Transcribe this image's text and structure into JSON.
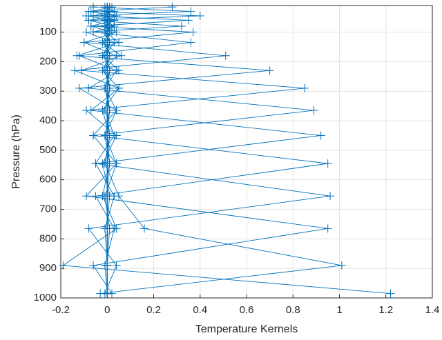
{
  "chart_data": {
    "type": "line",
    "xlabel": "Temperature Kernels",
    "ylabel": "Pressure (hPa)",
    "color": "#0072bd",
    "marker": "+",
    "xlim": [
      -0.2,
      1.4
    ],
    "xticks": [
      -0.2,
      0,
      0.2,
      0.4,
      0.6,
      0.8,
      1,
      1.2,
      1.4
    ],
    "ylim": [
      10,
      1000
    ],
    "yticks": [
      100,
      200,
      300,
      400,
      500,
      600,
      700,
      800,
      900,
      1000
    ],
    "y_reversed": true,
    "grid": true,
    "y": [
      15,
      30,
      45,
      60,
      80,
      100,
      135,
      180,
      230,
      290,
      365,
      450,
      545,
      655,
      765,
      890,
      985
    ],
    "series": [
      {
        "values": [
          0.28,
          -0.08,
          0.04,
          -0.01,
          0.01,
          0,
          0,
          0,
          0,
          0,
          0,
          0,
          0,
          0,
          0,
          0,
          0
        ]
      },
      {
        "values": [
          -0.06,
          0.36,
          -0.09,
          0.03,
          -0.01,
          0.01,
          0,
          0,
          0,
          0,
          0,
          0,
          0,
          0,
          0,
          0,
          0
        ]
      },
      {
        "values": [
          0.02,
          -0.07,
          0.4,
          -0.08,
          0.03,
          -0.01,
          0.01,
          0,
          0,
          0,
          0,
          0,
          0,
          0,
          0,
          0,
          0
        ]
      },
      {
        "values": [
          -0.01,
          0.03,
          -0.06,
          0.35,
          -0.07,
          0.02,
          -0.01,
          0,
          0.01,
          0,
          0,
          0,
          0,
          0,
          0,
          0,
          0
        ]
      },
      {
        "values": [
          0.01,
          -0.01,
          0.03,
          -0.08,
          0.32,
          -0.09,
          0.03,
          -0.01,
          0,
          0,
          0,
          0,
          0,
          0,
          0,
          0,
          0
        ]
      },
      {
        "values": [
          0,
          0.01,
          -0.01,
          0.03,
          -0.07,
          0.37,
          -0.1,
          0.04,
          -0.01,
          0.01,
          0,
          0,
          0,
          0,
          0,
          0,
          0
        ]
      },
      {
        "values": [
          0,
          0,
          0.01,
          -0.01,
          0.03,
          -0.06,
          0.36,
          -0.12,
          0.04,
          -0.01,
          0.01,
          0,
          0,
          0,
          0,
          0,
          0
        ]
      },
      {
        "values": [
          0,
          0,
          0,
          0.01,
          -0.01,
          0.04,
          -0.1,
          0.51,
          -0.14,
          0.05,
          -0.02,
          0.01,
          0,
          0,
          0,
          0,
          0
        ]
      },
      {
        "values": [
          0,
          0,
          0,
          0,
          0.01,
          -0.01,
          0.05,
          -0.13,
          0.7,
          -0.12,
          0.04,
          -0.01,
          0.01,
          0,
          0,
          0,
          0
        ]
      },
      {
        "values": [
          0,
          0,
          0,
          0,
          0,
          0.01,
          -0.02,
          0.06,
          -0.11,
          0.85,
          -0.09,
          0.04,
          -0.02,
          0.01,
          0,
          0,
          0
        ]
      },
      {
        "values": [
          0,
          0,
          0,
          0,
          0,
          0,
          0.01,
          -0.02,
          0.05,
          -0.08,
          0.89,
          -0.06,
          0.04,
          -0.01,
          0.01,
          0,
          0
        ]
      },
      {
        "values": [
          0,
          0,
          0,
          0,
          0,
          0,
          0,
          0.01,
          -0.02,
          0.05,
          -0.07,
          0.92,
          -0.05,
          0.03,
          -0.01,
          0,
          0
        ]
      },
      {
        "values": [
          0,
          0,
          0,
          0,
          0,
          0,
          0,
          0,
          0.01,
          -0.01,
          0.04,
          -0.06,
          0.95,
          -0.05,
          0.03,
          -0.01,
          0
        ]
      },
      {
        "values": [
          0,
          0,
          0,
          0,
          0,
          0,
          0,
          0,
          0,
          0.01,
          -0.01,
          0.03,
          -0.05,
          0.96,
          -0.08,
          0.04,
          -0.01
        ]
      },
      {
        "values": [
          0,
          0,
          0,
          0,
          0,
          0,
          0,
          0,
          0,
          0,
          0.01,
          -0.01,
          0.04,
          -0.09,
          0.95,
          -0.06,
          0.02
        ]
      },
      {
        "values": [
          0,
          0,
          0,
          0,
          0,
          0,
          0,
          0,
          0,
          0,
          0,
          0.01,
          -0.01,
          0.05,
          0.16,
          1.01,
          -0.03
        ]
      },
      {
        "values": [
          0,
          0,
          0,
          0,
          0,
          0,
          0,
          0,
          0,
          0,
          0,
          0,
          0.01,
          -0.02,
          0.04,
          -0.19,
          1.22
        ]
      }
    ]
  }
}
